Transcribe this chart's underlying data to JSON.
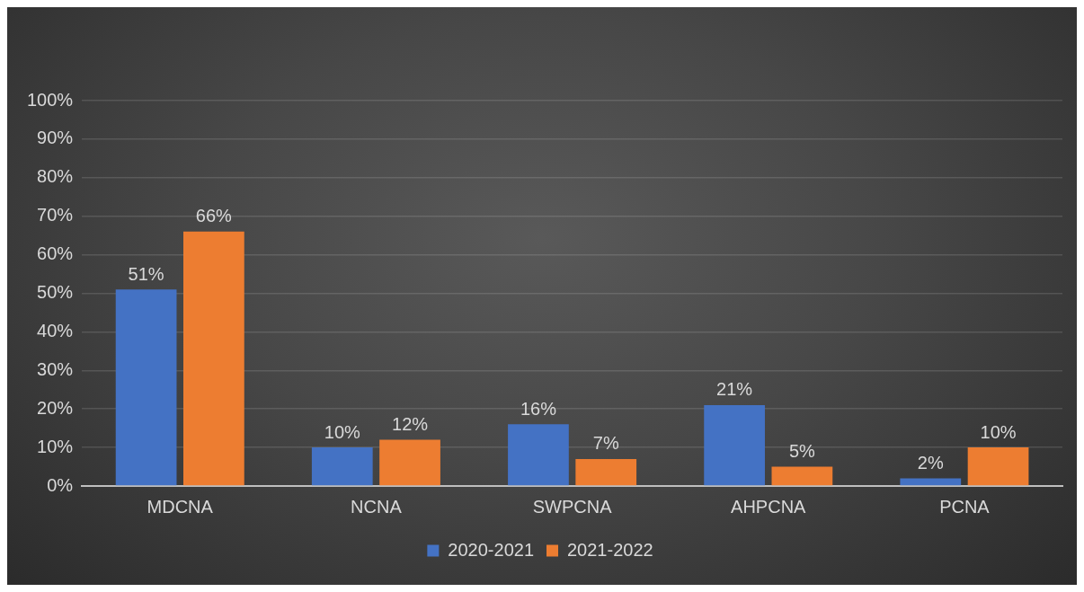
{
  "chart_data": {
    "type": "bar",
    "categories": [
      "MDCNA",
      "NCNA",
      "SWPCNA",
      "AHPCNA",
      "PCNA"
    ],
    "series": [
      {
        "name": "2020-2021",
        "color": "#4472c4",
        "values": [
          51,
          10,
          16,
          21,
          2
        ],
        "value_labels": [
          "51%",
          "10%",
          "16%",
          "21%",
          "2%"
        ]
      },
      {
        "name": "2021-2022",
        "color": "#ed7d31",
        "values": [
          66,
          12,
          7,
          5,
          10
        ],
        "value_labels": [
          "66%",
          "12%",
          "7%",
          "5%",
          "10%"
        ]
      }
    ],
    "ylim": [
      0,
      100
    ],
    "yticks": [
      {
        "value": 0,
        "label": "0%"
      },
      {
        "value": 10,
        "label": "10%"
      },
      {
        "value": 20,
        "label": "20%"
      },
      {
        "value": 30,
        "label": "30%"
      },
      {
        "value": 40,
        "label": "40%"
      },
      {
        "value": 50,
        "label": "50%"
      },
      {
        "value": 60,
        "label": "60%"
      },
      {
        "value": 70,
        "label": "70%"
      },
      {
        "value": 80,
        "label": "80%"
      },
      {
        "value": 90,
        "label": "90%"
      },
      {
        "value": 100,
        "label": "100%"
      }
    ],
    "grid": "y",
    "legend": "bottom"
  }
}
